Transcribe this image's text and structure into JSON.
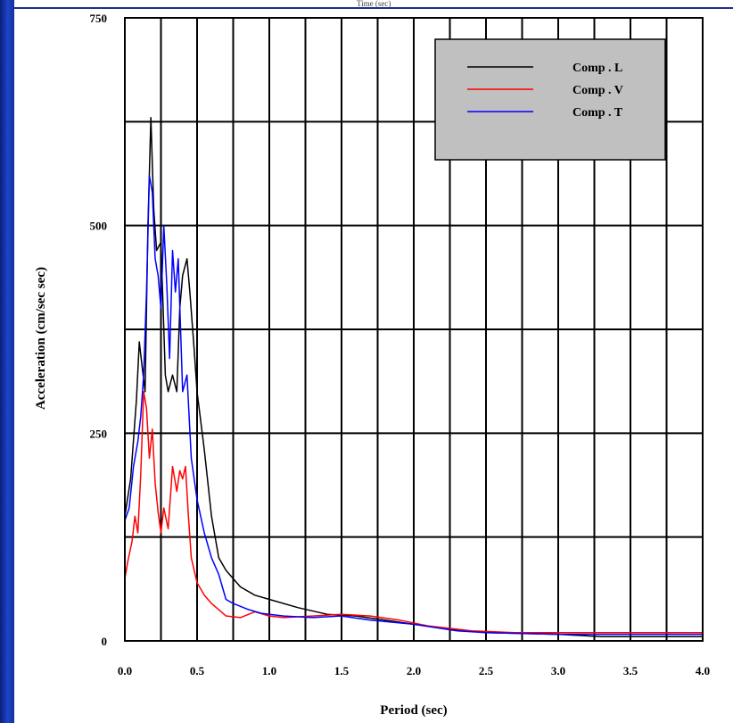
{
  "top_caption": "Time (sec)",
  "chart_data": {
    "type": "line",
    "xlabel": "Period (sec)",
    "ylabel": "Acceleration (cm/sec sec)",
    "xlim": [
      0,
      4
    ],
    "ylim": [
      0,
      750
    ],
    "x_ticks": [
      0,
      0.5,
      1,
      1.5,
      2,
      2.5,
      3,
      3.5,
      4
    ],
    "x_tick_labels": [
      "0.0",
      "0.5",
      "1.0",
      "1.5",
      "2.0",
      "2.5",
      "3.0",
      "3.5",
      "4.0"
    ],
    "y_ticks": [
      0,
      250,
      500,
      750
    ],
    "y_tick_labels": [
      "0",
      "250",
      "500",
      "750"
    ],
    "grid": true,
    "legend_position": "top-right",
    "series": [
      {
        "name": "Comp . L",
        "color": "#000000",
        "x": [
          0,
          0.04,
          0.08,
          0.1,
          0.12,
          0.14,
          0.16,
          0.18,
          0.2,
          0.22,
          0.25,
          0.28,
          0.3,
          0.33,
          0.36,
          0.38,
          0.4,
          0.43,
          0.45,
          0.48,
          0.5,
          0.55,
          0.6,
          0.65,
          0.7,
          0.8,
          0.9,
          1.0,
          1.2,
          1.4,
          1.6,
          1.8,
          2.0,
          2.2,
          2.5,
          3.0,
          3.3,
          3.5,
          4.0
        ],
        "y": [
          150,
          195,
          290,
          360,
          330,
          300,
          500,
          630,
          520,
          470,
          480,
          320,
          300,
          320,
          300,
          400,
          440,
          460,
          420,
          350,
          300,
          230,
          150,
          100,
          85,
          65,
          55,
          50,
          40,
          32,
          30,
          25,
          20,
          15,
          10,
          8,
          5,
          5,
          5
        ]
      },
      {
        "name": "Comp . V",
        "color": "#ff0000",
        "x": [
          0,
          0.02,
          0.05,
          0.07,
          0.09,
          0.11,
          0.13,
          0.15,
          0.17,
          0.19,
          0.21,
          0.23,
          0.25,
          0.27,
          0.3,
          0.33,
          0.36,
          0.38,
          0.4,
          0.42,
          0.44,
          0.46,
          0.5,
          0.55,
          0.6,
          0.7,
          0.8,
          0.9,
          1.0,
          1.1,
          1.3,
          1.5,
          1.7,
          1.9,
          2.1,
          2.4,
          2.7,
          3.0,
          3.5,
          4.0
        ],
        "y": [
          75,
          95,
          120,
          150,
          130,
          200,
          300,
          280,
          220,
          255,
          190,
          155,
          130,
          160,
          135,
          210,
          180,
          205,
          195,
          210,
          150,
          100,
          70,
          55,
          45,
          30,
          28,
          35,
          30,
          28,
          30,
          32,
          30,
          25,
          18,
          12,
          10,
          10,
          10,
          10
        ]
      },
      {
        "name": "Comp . T",
        "color": "#0000ff",
        "x": [
          0,
          0.03,
          0.06,
          0.09,
          0.11,
          0.13,
          0.15,
          0.17,
          0.19,
          0.21,
          0.23,
          0.25,
          0.27,
          0.29,
          0.31,
          0.33,
          0.35,
          0.37,
          0.4,
          0.43,
          0.46,
          0.5,
          0.55,
          0.6,
          0.65,
          0.7,
          0.75,
          0.85,
          0.95,
          1.1,
          1.3,
          1.5,
          1.7,
          2.0,
          2.3,
          2.5,
          3.0,
          3.5,
          4.0
        ],
        "y": [
          145,
          160,
          210,
          240,
          270,
          320,
          420,
          560,
          540,
          460,
          440,
          400,
          500,
          430,
          340,
          470,
          420,
          460,
          300,
          320,
          220,
          170,
          130,
          100,
          80,
          50,
          45,
          38,
          33,
          30,
          28,
          30,
          25,
          20,
          12,
          10,
          8,
          8,
          8
        ]
      }
    ]
  }
}
